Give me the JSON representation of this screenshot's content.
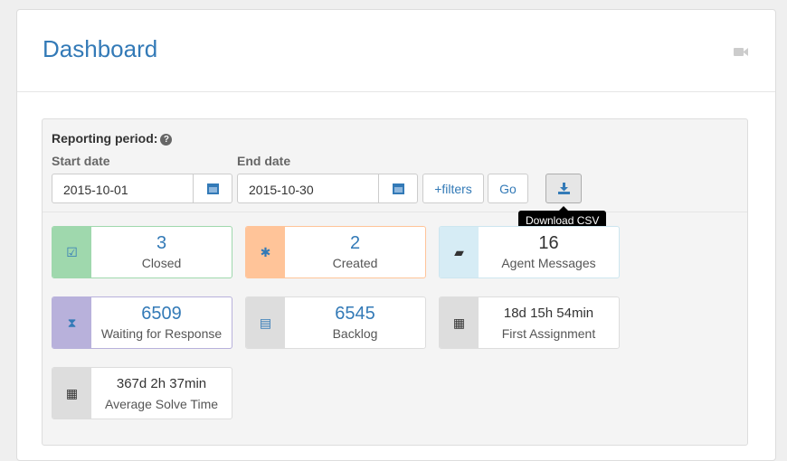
{
  "header": {
    "title": "Dashboard",
    "icon": "video-camera-icon"
  },
  "filters": {
    "reporting_period_label": "Reporting period:",
    "start_label": "Start date",
    "start_value": "2015-10-01",
    "end_label": "End date",
    "end_value": "2015-10-30",
    "filters_button": "+filters",
    "go_button": "Go",
    "download_tooltip": "Download CSV"
  },
  "stats": [
    {
      "value": "3",
      "label": "Closed",
      "icon": "check-square-icon",
      "color": "#9fd8ad",
      "border": "#9fd8ad"
    },
    {
      "value": "2",
      "label": "Created",
      "icon": "asterisk-icon",
      "color": "#ffc499",
      "border": "#ffc499"
    },
    {
      "value": "16",
      "label": "Agent Messages",
      "icon": "comment-icon",
      "color": "#d6ecf5",
      "border": "#cde6ef"
    },
    {
      "value": "6509",
      "label": "Waiting for Response",
      "icon": "hourglass-icon",
      "color": "#b8b1db",
      "border": "#b8b1db"
    },
    {
      "value": "6545",
      "label": "Backlog",
      "icon": "list-icon",
      "color": "#dddddd",
      "border": "#ddd"
    },
    {
      "value": "18d 15h 54min",
      "label": "First Assignment",
      "icon": "calendar-icon",
      "color": "#dddddd",
      "border": "#ddd"
    },
    {
      "value": "367d 2h 37min",
      "label": "Average Solve Time",
      "icon": "calendar-icon",
      "color": "#dddddd",
      "border": "#ddd"
    }
  ]
}
